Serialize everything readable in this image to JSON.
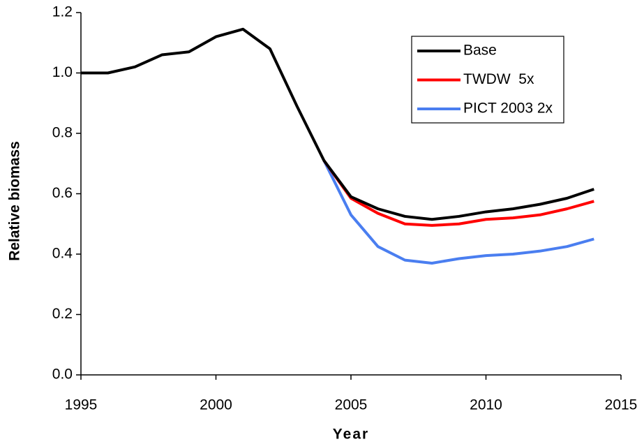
{
  "chart_data": {
    "type": "line",
    "x_label": "Year",
    "y_label": "Relative biomass",
    "x": [
      1995,
      1996,
      1997,
      1998,
      1999,
      2000,
      2001,
      2002,
      2003,
      2004,
      2005,
      2006,
      2007,
      2008,
      2009,
      2010,
      2011,
      2012,
      2013,
      2014
    ],
    "series": [
      {
        "name": "Base",
        "color": "#000000",
        "values": [
          1.0,
          1.0,
          1.02,
          1.06,
          1.07,
          1.12,
          1.145,
          1.08,
          0.89,
          0.71,
          0.59,
          0.55,
          0.525,
          0.515,
          0.525,
          0.54,
          0.55,
          0.565,
          0.585,
          0.615
        ]
      },
      {
        "name": "TWDW  5x",
        "color": "#ff0000",
        "values": [
          null,
          null,
          null,
          null,
          null,
          null,
          null,
          null,
          null,
          0.71,
          0.585,
          0.535,
          0.5,
          0.495,
          0.5,
          0.515,
          0.52,
          0.53,
          0.55,
          0.575
        ]
      },
      {
        "name": "PICT 2003 2x",
        "color": "#4a7ef0",
        "values": [
          null,
          null,
          null,
          null,
          null,
          null,
          null,
          null,
          null,
          0.71,
          0.53,
          0.425,
          0.38,
          0.37,
          0.385,
          0.395,
          0.4,
          0.41,
          0.425,
          0.45
        ]
      }
    ],
    "xlim": [
      1995,
      2015
    ],
    "xticks": [
      1995,
      2000,
      2005,
      2010,
      2015
    ],
    "ylim": [
      0,
      1.2
    ],
    "yticks": [
      {
        "value": 0,
        "label": "0.0"
      },
      0.2,
      0.4,
      0.6,
      0.8,
      {
        "value": 1,
        "label": "1.0"
      },
      1.2
    ],
    "grid": false,
    "legend": "upper right"
  }
}
